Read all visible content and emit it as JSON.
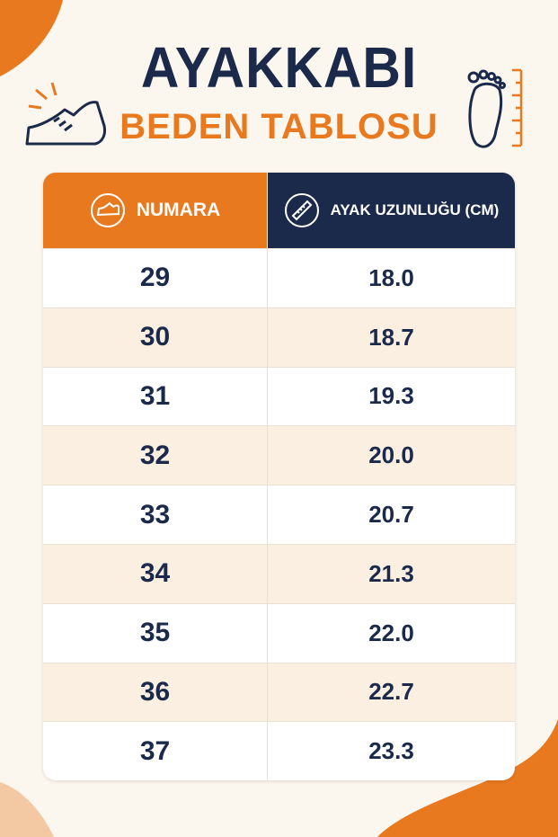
{
  "header": {
    "title": "AYAKKABI",
    "subtitle": "BEDEN TABLOSU"
  },
  "table": {
    "columns": [
      "NUMARA",
      "AYAK UZUNLUĞU (CM)"
    ],
    "rows": [
      [
        "29",
        "18.0"
      ],
      [
        "30",
        "18.7"
      ],
      [
        "31",
        "19.3"
      ],
      [
        "32",
        "20.0"
      ],
      [
        "33",
        "20.7"
      ],
      [
        "34",
        "21.3"
      ],
      [
        "35",
        "22.0"
      ],
      [
        "36",
        "22.7"
      ],
      [
        "37",
        "23.3"
      ]
    ]
  }
}
